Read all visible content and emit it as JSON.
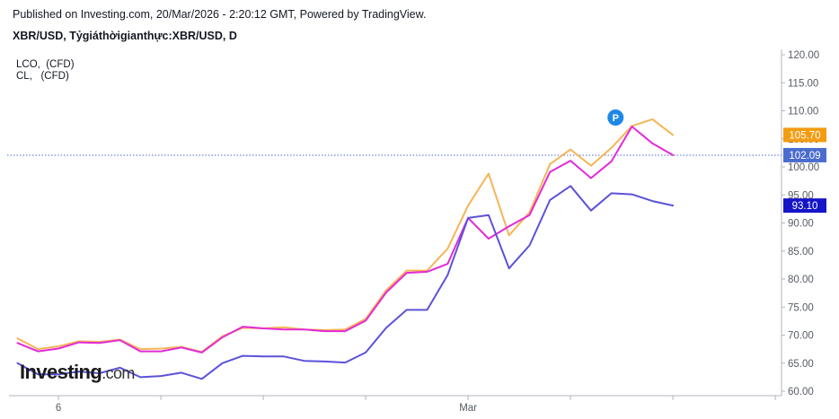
{
  "header": {
    "published": "Published on Investing.com, 20/Mar/2026 - 2:20:12 GMT, Powered by TradingView.",
    "symbol": "XBR/USD, Tỷgiáthờigianthực:XBR/USD, D"
  },
  "legend": [
    {
      "label": "LCO,  (CFD)"
    },
    {
      "label": "CL,   (CFD)"
    }
  ],
  "logo": {
    "brand": "Investing",
    "suffix": ".com"
  },
  "chart_data": {
    "type": "line",
    "ylim": [
      60,
      120
    ],
    "y_ticks": [
      "120.00",
      "115.00",
      "110.00",
      "105.00",
      "100.00",
      "95.00",
      "90.00",
      "85.00",
      "80.00",
      "75.00",
      "70.00",
      "65.00",
      "60.00"
    ],
    "x_labels": [
      {
        "label": "6",
        "index": 2
      },
      {
        "label": "Mar",
        "index": 22
      }
    ],
    "x_tick_indices": [
      2,
      7,
      12,
      17,
      22,
      27,
      32,
      37,
      42
    ],
    "num_points": 40,
    "series": [
      {
        "color": "#f5b556",
        "values": [
          69.4,
          67.5,
          68.0,
          68.9,
          68.8,
          69.2,
          67.5,
          67.6,
          67.9,
          67.0,
          69.8,
          71.3,
          71.2,
          71.4,
          71.0,
          70.9,
          71.0,
          72.9,
          78.0,
          81.5,
          81.5,
          85.4,
          93.1,
          98.8,
          87.8,
          91.9,
          100.5,
          103.1,
          100.2,
          103.4,
          107.3,
          108.5,
          105.7
        ]
      },
      {
        "color": "#e32ad8",
        "values": [
          68.6,
          67.1,
          67.6,
          68.7,
          68.6,
          69.1,
          67.1,
          67.1,
          67.8,
          66.9,
          69.6,
          71.5,
          71.2,
          71.0,
          71.0,
          70.7,
          70.7,
          72.6,
          77.6,
          81.1,
          81.3,
          82.7,
          90.9,
          87.2,
          89.4,
          91.4,
          99.1,
          101.1,
          98.0,
          101.0,
          107.2,
          104.2,
          102.1
        ]
      },
      {
        "color": "#5b52d9",
        "values": [
          65.0,
          63.0,
          63.0,
          63.5,
          63.2,
          64.2,
          62.5,
          62.7,
          63.3,
          62.2,
          65.0,
          66.3,
          66.2,
          66.2,
          65.4,
          65.3,
          65.1,
          66.9,
          71.3,
          74.5,
          74.5,
          80.7,
          90.9,
          91.4,
          81.9,
          86.0,
          94.1,
          96.6,
          92.2,
          95.3,
          95.1,
          93.9,
          93.1
        ]
      }
    ],
    "price_labels": [
      {
        "value": 105.7,
        "text": "105.70",
        "color": "#f39c12"
      },
      {
        "value": 102.09,
        "text": "102.09",
        "color": "#4a6ccf"
      },
      {
        "value": 93.1,
        "text": "93.10",
        "color": "#1515c8"
      }
    ],
    "horizontal_line": {
      "value": 102.09,
      "color": "#4a6ccf"
    },
    "marker": {
      "text": "P",
      "color": "#1e88e5",
      "index": 29.2,
      "value": 108.8
    }
  }
}
